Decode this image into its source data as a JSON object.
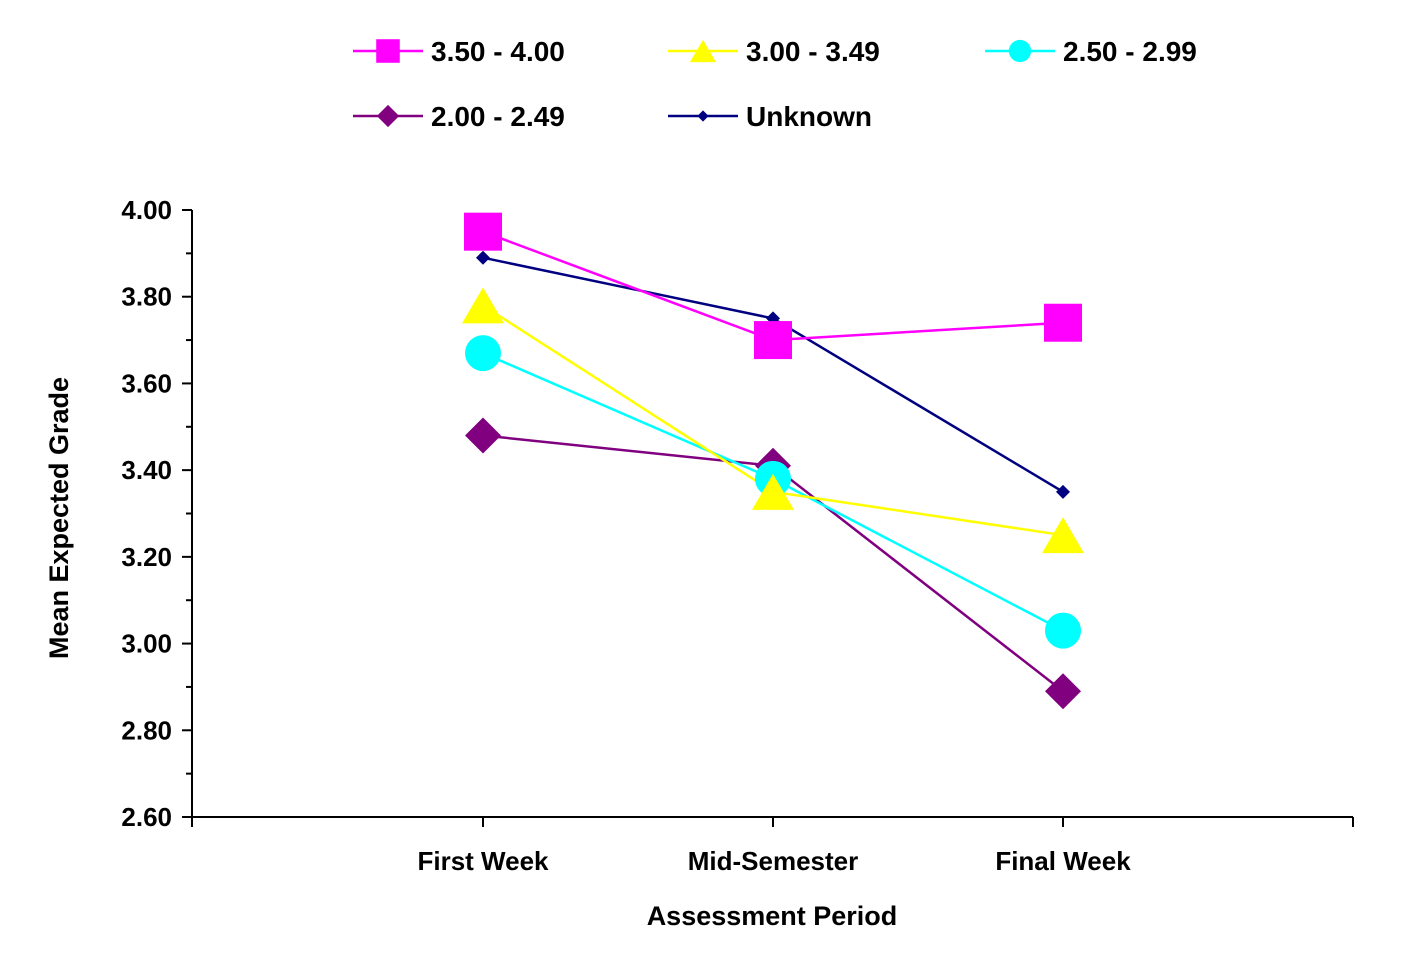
{
  "chart_data": {
    "type": "line",
    "title": "",
    "xlabel": "Assessment Period",
    "ylabel": "Mean Expected Grade",
    "categories": [
      "First Week",
      "Mid-Semester",
      "Final Week"
    ],
    "ylim": [
      2.6,
      4.0
    ],
    "yticks": [
      "2.60",
      "2.80",
      "3.00",
      "3.20",
      "3.40",
      "3.60",
      "3.80",
      "4.00"
    ],
    "grid": false,
    "legend_position": "top",
    "series": [
      {
        "name": "3.50 - 4.00",
        "values": [
          3.95,
          3.7,
          3.74
        ],
        "color": "#FF00FF",
        "marker": "square"
      },
      {
        "name": "3.00 - 3.49",
        "values": [
          3.78,
          3.35,
          3.25
        ],
        "color": "#FFFF00",
        "marker": "triangle"
      },
      {
        "name": "2.50 - 2.99",
        "values": [
          3.67,
          3.38,
          3.03
        ],
        "color": "#00FFFF",
        "marker": "circle"
      },
      {
        "name": "2.00 - 2.49",
        "values": [
          3.48,
          3.41,
          2.89
        ],
        "color": "#800080",
        "marker": "diamond"
      },
      {
        "name": "Unknown",
        "values": [
          3.89,
          3.75,
          3.35
        ],
        "color": "#000080",
        "marker": "small-diamond"
      }
    ]
  }
}
